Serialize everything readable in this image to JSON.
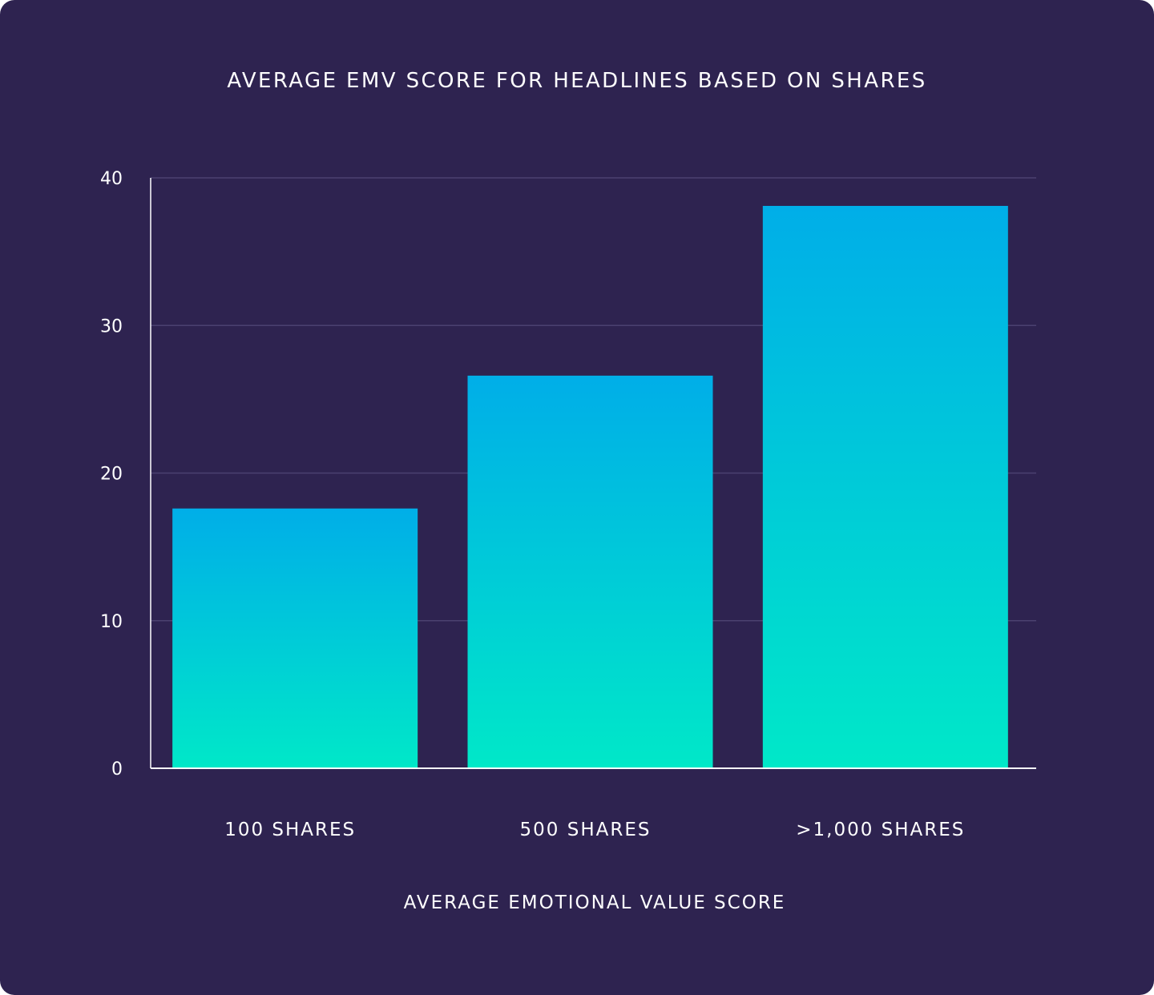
{
  "chart_data": {
    "type": "bar",
    "title": "AVERAGE EMV SCORE FOR HEADLINES BASED ON SHARES",
    "categories": [
      "100 SHARES",
      "500 SHARES",
      ">1,000 SHARES"
    ],
    "values": [
      17.6,
      26.6,
      38.1
    ],
    "xlabel": "AVERAGE EMOTIONAL VALUE SCORE",
    "ylabel": "",
    "ylim": [
      0,
      40
    ],
    "yticks": [
      0,
      10,
      20,
      30,
      40
    ],
    "grid": true,
    "legend": "none",
    "colors": {
      "background": "#2e2350",
      "bar_top": "#00aee8",
      "bar_bottom": "#00e8c8",
      "gridline": "#4b4170",
      "axis": "#ffffff"
    }
  }
}
